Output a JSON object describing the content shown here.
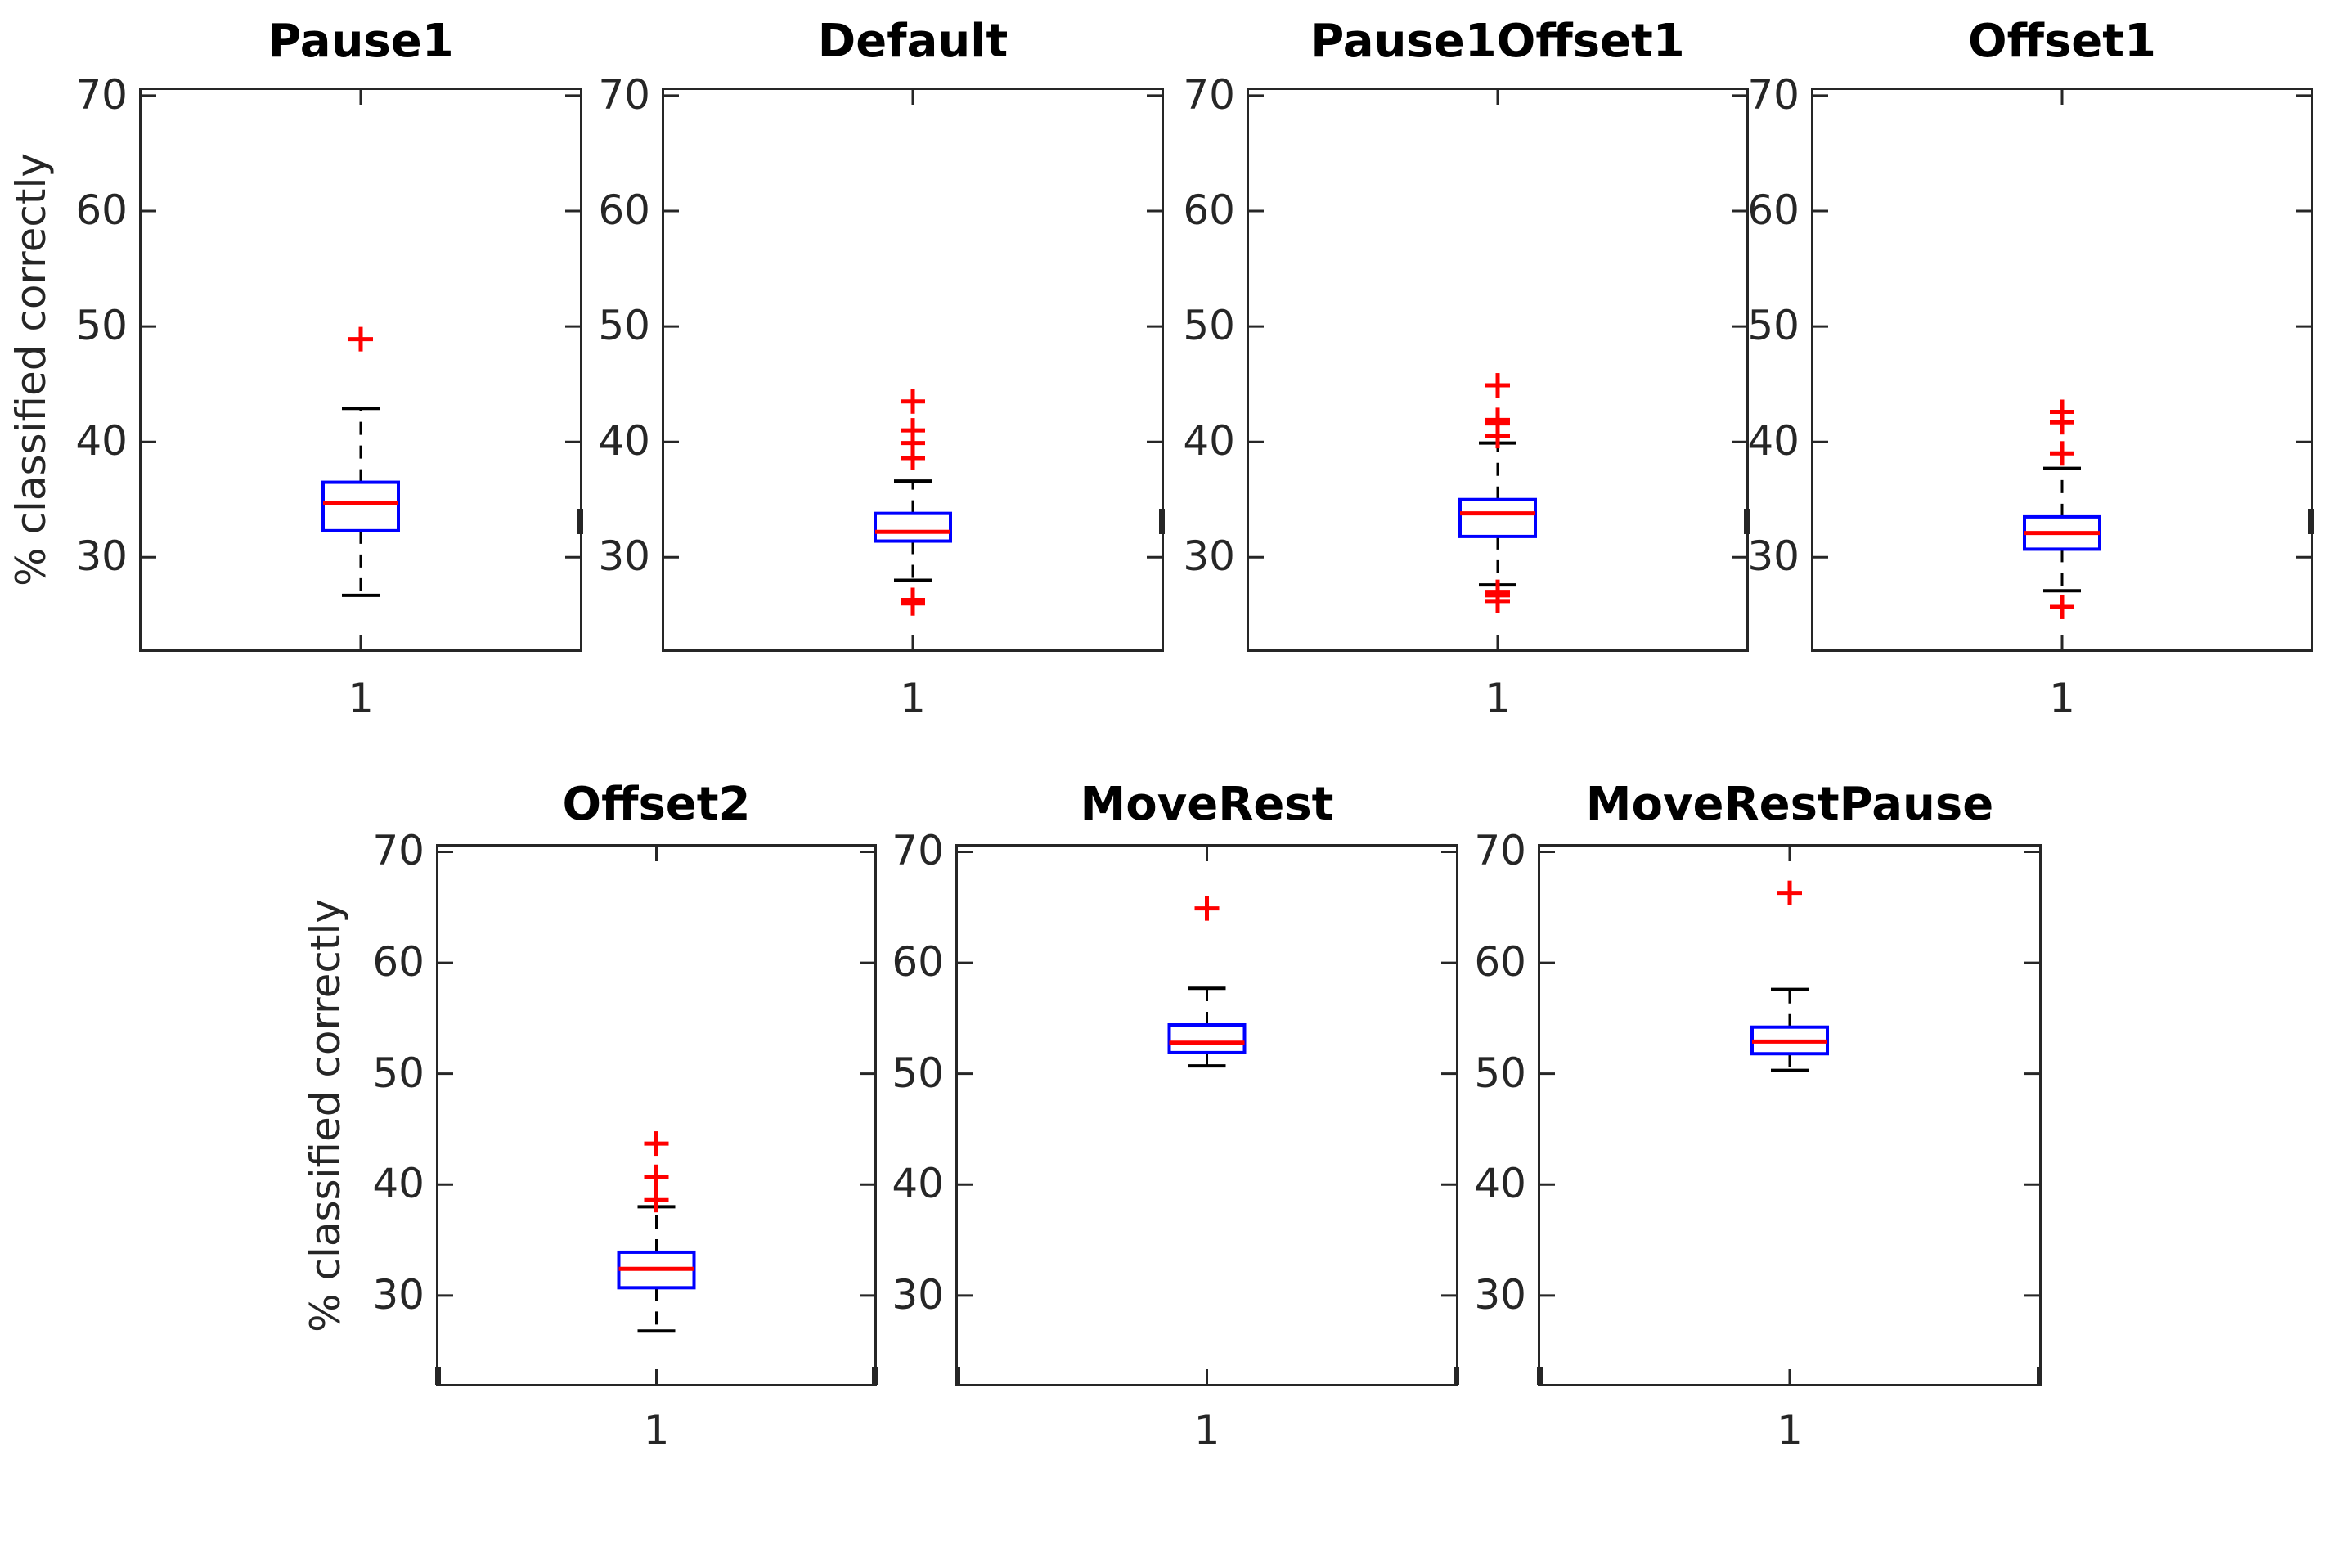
{
  "figure": {
    "background": "#ffffff",
    "axis_color": "#262626",
    "title_color": "#000000",
    "box_color": "#0000ff",
    "median_color": "#ff0000",
    "outlier_color": "#ff0000",
    "whisker_color": "#000000",
    "ylabel": "% classified correctly",
    "xtick_label": "1",
    "yticks": [
      70,
      60,
      50,
      40,
      30
    ],
    "ylim": [
      21.8,
      70.7
    ],
    "grid": "off",
    "marker": "plus"
  },
  "chart_data": [
    {
      "type": "boxplot",
      "title": "Pause1",
      "x_category": "1",
      "stats": {
        "median": 34.7,
        "q1": 32.3,
        "q3": 36.5,
        "whisker_low": 26.7,
        "whisker_high": 42.9
      },
      "outliers_high": [
        48.9
      ],
      "outliers_low": []
    },
    {
      "type": "boxplot",
      "title": "Default",
      "x_category": "1",
      "stats": {
        "median": 32.2,
        "q1": 31.4,
        "q3": 33.8,
        "whisker_low": 28.0,
        "whisker_high": 36.6
      },
      "outliers_high": [
        43.5,
        41.0,
        39.9,
        38.6
      ],
      "outliers_low": [
        26.3,
        26.0
      ]
    },
    {
      "type": "boxplot",
      "title": "Pause1Offset1",
      "x_category": "1",
      "stats": {
        "median": 33.8,
        "q1": 31.8,
        "q3": 35.0,
        "whisker_low": 27.6,
        "whisker_high": 39.9
      },
      "outliers_high": [
        44.9,
        41.9,
        41.6,
        40.5
      ],
      "outliers_low": [
        27.0,
        26.7,
        26.2
      ]
    },
    {
      "type": "boxplot",
      "title": "Offset1",
      "x_category": "1",
      "stats": {
        "median": 32.1,
        "q1": 30.7,
        "q3": 33.5,
        "whisker_low": 27.1,
        "whisker_high": 37.7
      },
      "outliers_high": [
        42.6,
        41.7,
        39.0
      ],
      "outliers_low": [
        25.7
      ]
    },
    {
      "type": "boxplot",
      "title": "Offset2",
      "x_category": "1",
      "stats": {
        "median": 32.4,
        "q1": 30.7,
        "q3": 33.9,
        "whisker_low": 26.8,
        "whisker_high": 38.0
      },
      "outliers_high": [
        43.7,
        40.7,
        38.6
      ],
      "outliers_low": []
    },
    {
      "type": "boxplot",
      "title": "MoveRest",
      "x_category": "1",
      "stats": {
        "median": 52.8,
        "q1": 51.9,
        "q3": 54.4,
        "whisker_low": 50.7,
        "whisker_high": 57.7
      },
      "outliers_high": [
        64.9
      ],
      "outliers_low": []
    },
    {
      "type": "boxplot",
      "title": "MoveRestPause",
      "x_category": "1",
      "stats": {
        "median": 52.9,
        "q1": 51.8,
        "q3": 54.2,
        "whisker_low": 50.3,
        "whisker_high": 57.6
      },
      "outliers_high": [
        66.3
      ],
      "outliers_low": []
    }
  ]
}
